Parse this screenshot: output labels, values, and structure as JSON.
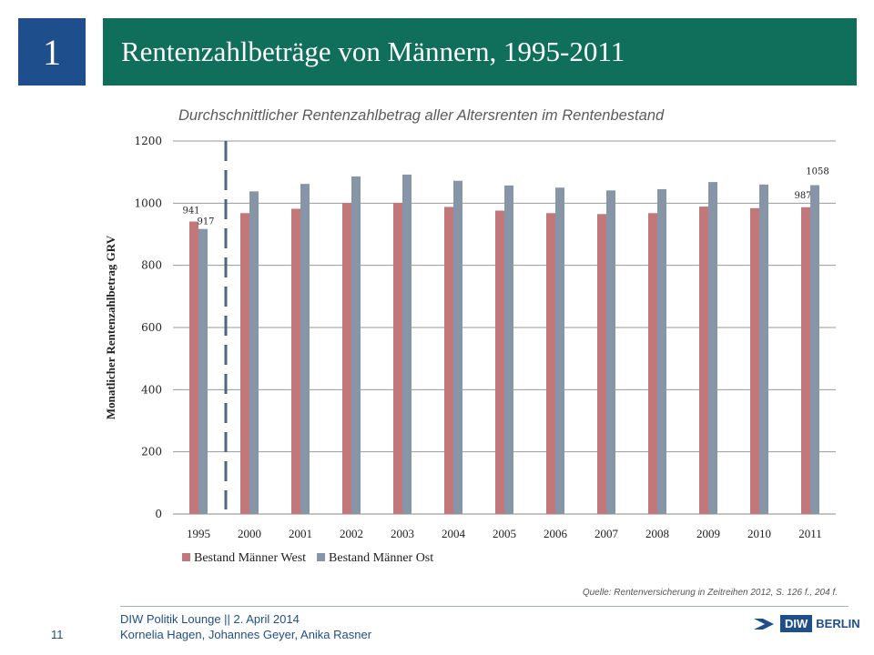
{
  "slide": {
    "number": "1",
    "title": "Rentenzahlbeträge von Männern, 1995-2011",
    "subtitle": "Durchschnittlicher Rentenzahlbetrag aller Altersrenten im Rentenbestand",
    "source": "Quelle: Rentenversicherung in Zeitreihen 2012, S. 126 f., 204 f.",
    "footer_line1": "DIW Politik Lounge || 2. April 2014",
    "footer_line2": "Kornelia Hagen, Johannes Geyer, Anika Rasner",
    "page_number": "11",
    "logo_box": "DIW",
    "logo_text": "BERLIN"
  },
  "colors": {
    "title_bar": "#0f6f5a",
    "number_box": "#1f4e8c",
    "west": "#c0787a",
    "ost": "#8796a6",
    "divider": "#50667c"
  },
  "chart_data": {
    "type": "bar",
    "title": "Durchschnittlicher Rentenzahlbetrag aller Altersrenten im Rentenbestand",
    "xlabel": "",
    "ylabel": "Monatlicher Rentenzahlbetrag GRV",
    "ylim": [
      0,
      1200
    ],
    "yticks": [
      0,
      200,
      400,
      600,
      800,
      1000,
      1200
    ],
    "grid": true,
    "legend_position": "bottom-left",
    "categories": [
      "1995",
      "2000",
      "2001",
      "2002",
      "2003",
      "2004",
      "2005",
      "2006",
      "2007",
      "2008",
      "2009",
      "2010",
      "2011"
    ],
    "series": [
      {
        "name": "Bestand Männer West",
        "values": [
          941,
          968,
          982,
          1000,
          1001,
          988,
          976,
          968,
          965,
          968,
          989,
          984,
          987
        ],
        "data_labels": {
          "0": "941",
          "12": "987"
        }
      },
      {
        "name": "Bestand Männer Ost",
        "values": [
          917,
          1038,
          1062,
          1086,
          1092,
          1072,
          1057,
          1050,
          1041,
          1045,
          1068,
          1060,
          1058
        ],
        "data_labels": {
          "0": "917",
          "12": "1058"
        }
      }
    ],
    "divider_after_category": "1995"
  }
}
